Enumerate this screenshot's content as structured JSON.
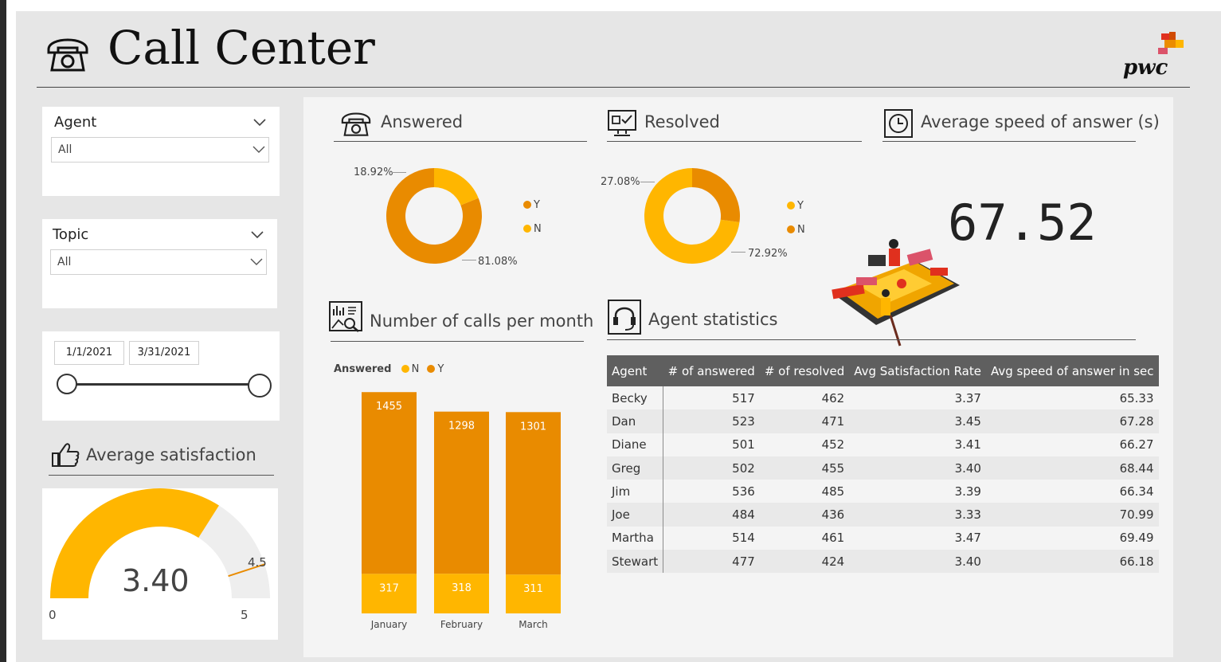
{
  "header": {
    "title": "Call Center",
    "logo_text": "pwc"
  },
  "filters": {
    "agent": {
      "label": "Agent",
      "value": "All"
    },
    "topic": {
      "label": "Topic",
      "value": "All"
    },
    "date": {
      "start": "1/1/2021",
      "end": "3/31/2021"
    }
  },
  "satisfaction": {
    "title": "Average satisfaction",
    "value": "3.40",
    "min": "0",
    "max": "5",
    "target": "4.5",
    "gauge_fraction": 0.68,
    "target_fraction": 0.9
  },
  "answered": {
    "title": "Answered",
    "pct_small": "18.92%",
    "pct_large": "81.08%",
    "legend": [
      "Y",
      "N"
    ],
    "fractions": {
      "Y": 0.8108,
      "N": 0.1892
    }
  },
  "resolved": {
    "title": "Resolved",
    "pct_small": "27.08%",
    "pct_large": "72.92%",
    "legend": [
      "Y",
      "N"
    ],
    "fractions": {
      "Y": 0.7292,
      "N": 0.2708
    }
  },
  "speed": {
    "title": "Average speed of answer (s)",
    "value": "67.52"
  },
  "calls_month": {
    "title": "Number of calls per month",
    "legend_title": "Answered",
    "legend": [
      "N",
      "Y"
    ]
  },
  "chart_data": {
    "type": "bar",
    "stacked": true,
    "categories": [
      "January",
      "February",
      "March"
    ],
    "series": [
      {
        "name": "N",
        "values": [
          317,
          318,
          311
        ]
      },
      {
        "name": "Y",
        "values": [
          1455,
          1298,
          1301
        ]
      }
    ]
  },
  "agent_stats": {
    "title": "Agent statistics",
    "columns": [
      "Agent",
      "# of answered",
      "# of resolved",
      "Avg Satisfaction Rate",
      "Avg speed of answer in sec"
    ],
    "rows": [
      [
        "Becky",
        "517",
        "462",
        "3.37",
        "65.33"
      ],
      [
        "Dan",
        "523",
        "471",
        "3.45",
        "67.28"
      ],
      [
        "Diane",
        "501",
        "452",
        "3.41",
        "66.27"
      ],
      [
        "Greg",
        "502",
        "455",
        "3.40",
        "68.44"
      ],
      [
        "Jim",
        "536",
        "485",
        "3.39",
        "66.34"
      ],
      [
        "Joe",
        "484",
        "436",
        "3.33",
        "70.99"
      ],
      [
        "Martha",
        "514",
        "461",
        "3.47",
        "69.49"
      ],
      [
        "Stewart",
        "477",
        "424",
        "3.40",
        "66.18"
      ]
    ]
  },
  "colors": {
    "dark_orange": "#e98b00",
    "yellow": "#ffb600",
    "table_header": "#5f5f5f"
  },
  "icons": {
    "header": "telephone-icon",
    "answered": "telephone-icon",
    "resolved": "monitor-check-icon",
    "speed": "clock-icon",
    "calls": "chart-search-icon",
    "agents": "headset-icon",
    "satisfaction": "thumbs-up-icon"
  }
}
